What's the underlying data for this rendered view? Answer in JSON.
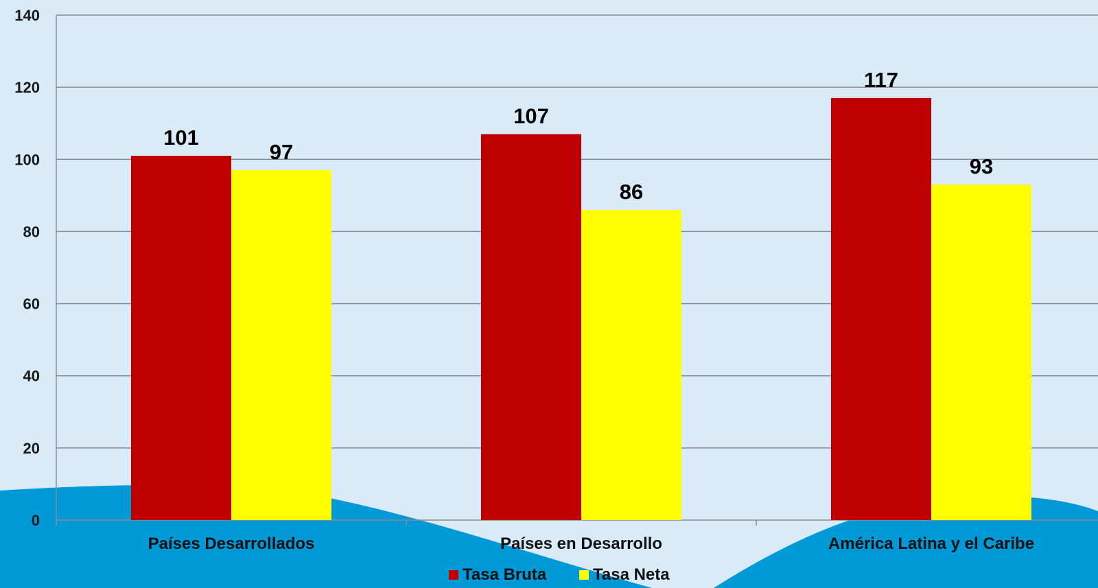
{
  "colors": {
    "background": "#d9eaf8",
    "wave": "#0099d8",
    "grid": "#8c8c8c",
    "bruta": "#c00000",
    "neta": "#ffff00"
  },
  "chart_data": {
    "type": "bar",
    "title": "",
    "xlabel": "",
    "ylabel": "",
    "ylim": [
      0,
      140
    ],
    "yticks": [
      0,
      20,
      40,
      60,
      80,
      100,
      120,
      140
    ],
    "grid": true,
    "legend": "bottom",
    "categories": [
      "Países Desarrollados",
      "Países en Desarrollo",
      "América Latina y el Caribe"
    ],
    "series": [
      {
        "name": "Tasa Bruta",
        "values": [
          101,
          107,
          117
        ]
      },
      {
        "name": "Tasa Neta",
        "values": [
          97,
          86,
          93
        ]
      }
    ]
  }
}
